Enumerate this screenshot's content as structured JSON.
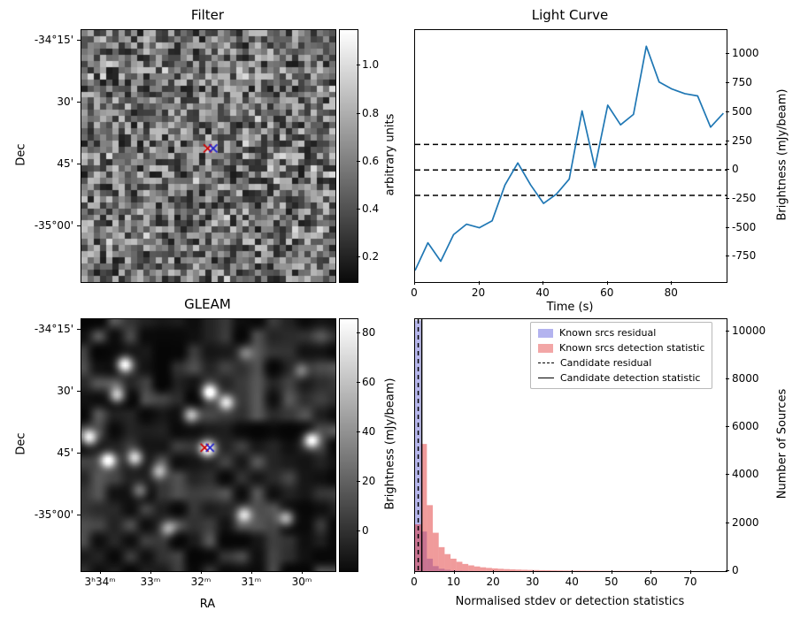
{
  "figure": {
    "bg": "#ffffff",
    "text_color": "#000000"
  },
  "chart_data": [
    {
      "name": "filter",
      "type": "heatmap",
      "title": "Filter",
      "ylabel": "Dec",
      "yticks": [
        {
          "label": "-34°15'",
          "f": 0.042
        },
        {
          "label": "30'",
          "f": 0.288
        },
        {
          "label": "45'",
          "f": 0.533
        },
        {
          "label": "-35°00'",
          "f": 0.779
        }
      ],
      "colorbar": {
        "label": "arbitrary units",
        "vmin": 0.1,
        "vmax": 1.15,
        "ticks": [
          {
            "label": "1.0",
            "f": 0.142
          },
          {
            "label": "0.8",
            "f": 0.332
          },
          {
            "label": "0.6",
            "f": 0.522
          },
          {
            "label": "0.4",
            "f": 0.712
          },
          {
            "label": "0.2",
            "f": 0.902
          }
        ]
      },
      "description": "grayscale pixel noise map, mean ~0.55 arbitrary units, with slightly bright patch at candidate position",
      "markers": [
        {
          "shape": "x",
          "color": "#cc0000",
          "x": 0.497,
          "y": 0.47
        },
        {
          "shape": "x",
          "color": "#2222cc",
          "x": 0.519,
          "y": 0.47
        }
      ]
    },
    {
      "name": "light_curve",
      "type": "line",
      "title": "Light Curve",
      "xlabel": "Time (s)",
      "ylabel": "Brightness (mJy/beam)",
      "yaxis_side": "right",
      "line_color": "#1f77b4",
      "x": [
        0,
        4,
        8,
        12,
        16,
        20,
        24,
        28,
        32,
        36,
        40,
        44,
        48,
        52,
        56,
        60,
        64,
        68,
        72,
        76,
        80,
        84,
        88,
        92,
        96
      ],
      "y": [
        -870,
        -630,
        -790,
        -560,
        -470,
        -500,
        -440,
        -130,
        60,
        -130,
        -290,
        -210,
        -80,
        510,
        20,
        560,
        390,
        480,
        1070,
        760,
        700,
        660,
        640,
        370,
        490
      ],
      "dashed_hlines": [
        220,
        0,
        -220
      ],
      "xlim": [
        0,
        97
      ],
      "ylim": [
        -970,
        1210
      ],
      "xticks": [
        0,
        20,
        40,
        60,
        80
      ],
      "yticks": [
        1000,
        750,
        500,
        250,
        0,
        -250,
        -500,
        -750
      ]
    },
    {
      "name": "gleam",
      "type": "heatmap",
      "title": "GLEAM",
      "xlabel": "RA",
      "ylabel": "Dec",
      "xticks": [
        {
          "label": "3ʰ34ᵐ",
          "f": 0.077
        },
        {
          "label": "33ᵐ",
          "f": 0.275
        },
        {
          "label": "32ᵐ",
          "f": 0.474
        },
        {
          "label": "31ᵐ",
          "f": 0.672
        },
        {
          "label": "30ᵐ",
          "f": 0.871
        }
      ],
      "yticks": [
        {
          "label": "-34°15'",
          "f": 0.042
        },
        {
          "label": "30'",
          "f": 0.288
        },
        {
          "label": "45'",
          "f": 0.533
        },
        {
          "label": "-35°00'",
          "f": 0.779
        }
      ],
      "colorbar": {
        "label": "Brightness (mJy/beam)",
        "vmin": -16,
        "vmax": 86,
        "ticks": [
          {
            "label": "80",
            "f": 0.055
          },
          {
            "label": "60",
            "f": 0.252
          },
          {
            "label": "40",
            "f": 0.449
          },
          {
            "label": "20",
            "f": 0.646
          },
          {
            "label": "0",
            "f": 0.843
          }
        ]
      },
      "description": "smoothed radio sky image with bright point sources (beam-convolved)",
      "sources": [
        {
          "x": 0.165,
          "y": 0.175,
          "a": 0.95
        },
        {
          "x": 0.135,
          "y": 0.295,
          "a": 0.8
        },
        {
          "x": 0.5,
          "y": 0.285,
          "a": 1.0
        },
        {
          "x": 0.565,
          "y": 0.325,
          "a": 0.8
        },
        {
          "x": 0.425,
          "y": 0.375,
          "a": 0.55
        },
        {
          "x": 0.491,
          "y": 0.509,
          "a": 1.0
        },
        {
          "x": 0.025,
          "y": 0.465,
          "a": 0.85
        },
        {
          "x": 0.1,
          "y": 0.555,
          "a": 0.9
        },
        {
          "x": 0.205,
          "y": 0.545,
          "a": 0.8
        },
        {
          "x": 0.3,
          "y": 0.6,
          "a": 0.55
        },
        {
          "x": 0.9,
          "y": 0.475,
          "a": 0.95
        },
        {
          "x": 0.635,
          "y": 0.77,
          "a": 0.75
        },
        {
          "x": 0.8,
          "y": 0.785,
          "a": 0.7
        },
        {
          "x": 0.335,
          "y": 0.825,
          "a": 0.55
        },
        {
          "x": 0.225,
          "y": 0.675,
          "a": 0.45
        },
        {
          "x": 0.64,
          "y": 0.13,
          "a": 0.4
        },
        {
          "x": 0.86,
          "y": 0.2,
          "a": 0.35
        }
      ],
      "markers": [
        {
          "shape": "x",
          "color": "#cc0000",
          "x": 0.485,
          "y": 0.51
        },
        {
          "shape": "x",
          "color": "#2222cc",
          "x": 0.506,
          "y": 0.51
        }
      ]
    },
    {
      "name": "histogram",
      "type": "histogram",
      "xlabel": "Normalised stdev or detection statistics",
      "ylabel": "Number of Sources",
      "yaxis_side": "right",
      "bin_start": 0,
      "bin_width": 1.5,
      "xlim": [
        0,
        79
      ],
      "ylim": [
        0,
        10500
      ],
      "xticks": [
        0,
        10,
        20,
        30,
        40,
        50,
        60,
        70
      ],
      "yticks": [
        0,
        2000,
        4000,
        6000,
        8000,
        10000
      ],
      "series": [
        {
          "name": "Known srcs residual",
          "color": "#3333cc",
          "opacity": 0.35,
          "values": [
            10450,
            1650,
            520,
            210,
            100,
            55,
            32,
            20,
            13,
            9,
            6,
            4,
            3,
            2,
            2,
            1,
            1,
            1,
            1,
            0,
            0,
            0,
            0,
            0,
            0,
            0,
            0,
            0,
            0,
            0,
            0,
            0,
            0,
            0,
            0,
            0,
            0,
            0,
            0,
            0,
            0,
            0,
            0,
            0,
            0,
            0,
            0,
            0,
            0,
            0,
            0
          ]
        },
        {
          "name": "Known srcs detection statistic",
          "color": "#dd2222",
          "opacity": 0.45,
          "values": [
            1950,
            5300,
            2750,
            1600,
            1000,
            710,
            520,
            390,
            300,
            240,
            195,
            160,
            135,
            115,
            98,
            85,
            74,
            65,
            57,
            50,
            45,
            40,
            36,
            32,
            29,
            26,
            24,
            22,
            20,
            18,
            17,
            15,
            14,
            13,
            12,
            11,
            10,
            10,
            9,
            9,
            8,
            8,
            7,
            7,
            6,
            6,
            6,
            5,
            5,
            5,
            5
          ]
        }
      ],
      "vlines": [
        {
          "name": "Candidate residual",
          "x": 0.8,
          "style": "dashed",
          "color": "#000000"
        },
        {
          "name": "Candidate detection statistic",
          "x": 1.7,
          "style": "solid",
          "color": "#000000"
        }
      ],
      "legend": [
        {
          "label": "Known srcs residual",
          "swatch": "patch",
          "color": "#b3b3ef"
        },
        {
          "label": "Known srcs detection statistic",
          "swatch": "patch",
          "color": "#f2a6a6"
        },
        {
          "label": "Candidate residual",
          "swatch": "dashed-line",
          "color": "#000000"
        },
        {
          "label": "Candidate detection statistic",
          "swatch": "solid-line",
          "color": "#000000"
        }
      ]
    }
  ]
}
